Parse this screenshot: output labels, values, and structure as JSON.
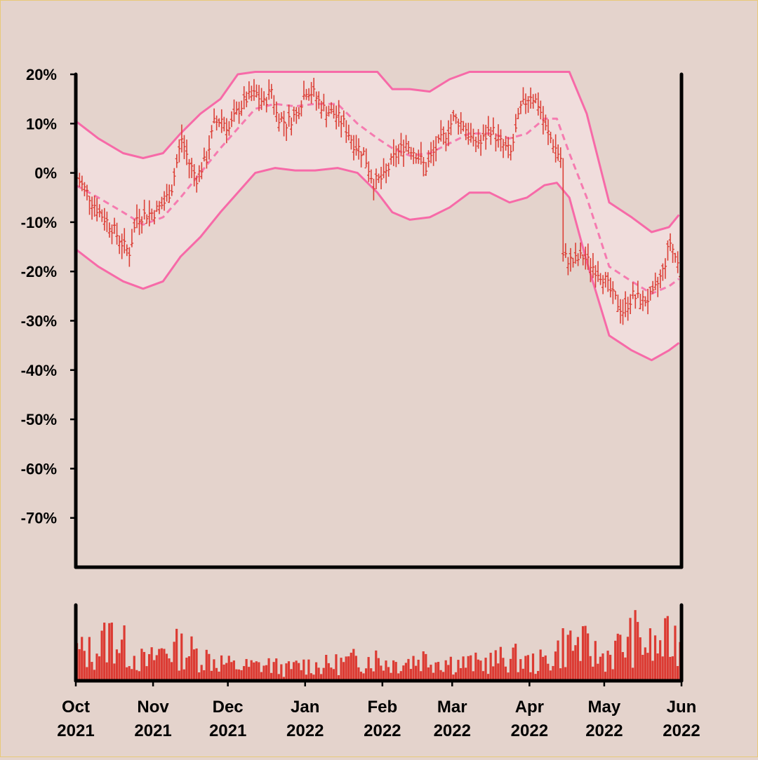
{
  "colors": {
    "background": "#e4d3cc",
    "outer_border": "#e8c979",
    "price_bars": "#dc4037",
    "band": "#f76aa8",
    "band_fill": "#f2dede",
    "volume_bars": "#dc3a32",
    "axis": "#000000"
  },
  "chart_data": {
    "type": "ohlc_bars_with_bollinger_bands_and_volume",
    "title": "",
    "y_axis": {
      "ticks": [
        "20%",
        "10%",
        "0%",
        "-10%",
        "-20%",
        "-30%",
        "-40%",
        "-50%",
        "-60%",
        "-70%"
      ],
      "tick_values": [
        20,
        10,
        0,
        -10,
        -20,
        -30,
        -40,
        -50,
        -60,
        -70
      ],
      "range": [
        -80,
        20
      ],
      "unit": "%"
    },
    "x_axis": {
      "range": [
        "2021-10-01",
        "2022-06-01"
      ],
      "ticks": [
        {
          "date": "2021-10-01",
          "month": "Oct",
          "year": "2021"
        },
        {
          "date": "2021-11-01",
          "month": "Nov",
          "year": "2021"
        },
        {
          "date": "2021-12-01",
          "month": "Dec",
          "year": "2021"
        },
        {
          "date": "2022-01-01",
          "month": "Jan",
          "year": "2022"
        },
        {
          "date": "2022-02-01",
          "month": "Feb",
          "year": "2022"
        },
        {
          "date": "2022-03-01",
          "month": "Mar",
          "year": "2022"
        },
        {
          "date": "2022-04-01",
          "month": "Apr",
          "year": "2022"
        },
        {
          "date": "2022-05-01",
          "month": "May",
          "year": "2022"
        },
        {
          "date": "2022-06-01",
          "month": "Jun",
          "year": "2022"
        }
      ]
    },
    "price_close_pct": [
      {
        "date": "2021-10-01",
        "close": -1
      },
      {
        "date": "2021-10-05",
        "close": -4
      },
      {
        "date": "2021-10-10",
        "close": -8
      },
      {
        "date": "2021-10-15",
        "close": -11
      },
      {
        "date": "2021-10-20",
        "close": -15
      },
      {
        "date": "2021-10-22",
        "close": -16
      },
      {
        "date": "2021-10-25",
        "close": -9
      },
      {
        "date": "2021-11-01",
        "close": -8
      },
      {
        "date": "2021-11-05",
        "close": -6
      },
      {
        "date": "2021-11-08",
        "close": -3
      },
      {
        "date": "2021-11-12",
        "close": 7
      },
      {
        "date": "2021-11-15",
        "close": 2
      },
      {
        "date": "2021-11-18",
        "close": -1
      },
      {
        "date": "2021-11-22",
        "close": 3
      },
      {
        "date": "2021-11-25",
        "close": 10
      },
      {
        "date": "2021-11-28",
        "close": 11
      },
      {
        "date": "2021-12-01",
        "close": 9
      },
      {
        "date": "2021-12-05",
        "close": 13
      },
      {
        "date": "2021-12-08",
        "close": 15
      },
      {
        "date": "2021-12-12",
        "close": 16
      },
      {
        "date": "2021-12-15",
        "close": 14
      },
      {
        "date": "2021-12-18",
        "close": 17
      },
      {
        "date": "2021-12-20",
        "close": 12
      },
      {
        "date": "2021-12-24",
        "close": 10
      },
      {
        "date": "2021-12-28",
        "close": 12
      },
      {
        "date": "2022-01-01",
        "close": 17
      },
      {
        "date": "2022-01-04",
        "close": 16
      },
      {
        "date": "2022-01-08",
        "close": 13
      },
      {
        "date": "2022-01-12",
        "close": 12
      },
      {
        "date": "2022-01-16",
        "close": 10
      },
      {
        "date": "2022-01-20",
        "close": 6
      },
      {
        "date": "2022-01-24",
        "close": 4
      },
      {
        "date": "2022-01-28",
        "close": -2
      },
      {
        "date": "2022-02-01",
        "close": -1
      },
      {
        "date": "2022-02-05",
        "close": 3
      },
      {
        "date": "2022-02-10",
        "close": 6
      },
      {
        "date": "2022-02-14",
        "close": 4
      },
      {
        "date": "2022-02-18",
        "close": 1
      },
      {
        "date": "2022-02-22",
        "close": 5
      },
      {
        "date": "2022-02-26",
        "close": 8
      },
      {
        "date": "2022-03-01",
        "close": 11
      },
      {
        "date": "2022-03-05",
        "close": 10
      },
      {
        "date": "2022-03-08",
        "close": 7
      },
      {
        "date": "2022-03-12",
        "close": 6
      },
      {
        "date": "2022-03-16",
        "close": 9
      },
      {
        "date": "2022-03-20",
        "close": 6
      },
      {
        "date": "2022-03-24",
        "close": 4
      },
      {
        "date": "2022-03-28",
        "close": 13
      },
      {
        "date": "2022-04-01",
        "close": 16
      },
      {
        "date": "2022-04-04",
        "close": 14
      },
      {
        "date": "2022-04-07",
        "close": 9
      },
      {
        "date": "2022-04-10",
        "close": 6
      },
      {
        "date": "2022-04-13",
        "close": 3
      },
      {
        "date": "2022-04-14",
        "close": -17
      },
      {
        "date": "2022-04-18",
        "close": -18
      },
      {
        "date": "2022-04-22",
        "close": -17
      },
      {
        "date": "2022-04-26",
        "close": -19
      },
      {
        "date": "2022-04-30",
        "close": -21
      },
      {
        "date": "2022-05-04",
        "close": -25
      },
      {
        "date": "2022-05-08",
        "close": -28
      },
      {
        "date": "2022-05-12",
        "close": -25
      },
      {
        "date": "2022-05-16",
        "close": -26
      },
      {
        "date": "2022-05-20",
        "close": -25
      },
      {
        "date": "2022-05-24",
        "close": -20
      },
      {
        "date": "2022-05-27",
        "close": -14
      },
      {
        "date": "2022-05-31",
        "close": -20
      }
    ],
    "bollinger_bands": [
      {
        "date": "2021-10-01",
        "upper": 10.5,
        "middle": -2.5,
        "lower": -15.5
      },
      {
        "date": "2021-10-10",
        "upper": 7,
        "middle": -5,
        "lower": -19
      },
      {
        "date": "2021-10-20",
        "upper": 4,
        "middle": -8,
        "lower": -22
      },
      {
        "date": "2021-10-28",
        "upper": 3,
        "middle": -10.5,
        "lower": -23.5
      },
      {
        "date": "2021-11-05",
        "upper": 4,
        "middle": -9,
        "lower": -22
      },
      {
        "date": "2021-11-12",
        "upper": 8,
        "middle": -5,
        "lower": -17
      },
      {
        "date": "2021-11-20",
        "upper": 12,
        "middle": 0,
        "lower": -13
      },
      {
        "date": "2021-11-28",
        "upper": 15,
        "middle": 5,
        "lower": -8
      },
      {
        "date": "2021-12-05",
        "upper": 20,
        "middle": 9,
        "lower": -4
      },
      {
        "date": "2021-12-12",
        "upper": 20.5,
        "middle": 13,
        "lower": 0
      },
      {
        "date": "2021-12-20",
        "upper": 20.5,
        "middle": 14,
        "lower": 1
      },
      {
        "date": "2021-12-28",
        "upper": 20.5,
        "middle": 13.5,
        "lower": 0.5
      },
      {
        "date": "2022-01-05",
        "upper": 20.5,
        "middle": 14,
        "lower": 0.5
      },
      {
        "date": "2022-01-14",
        "upper": 20.5,
        "middle": 14,
        "lower": 1
      },
      {
        "date": "2022-01-22",
        "upper": 20.5,
        "middle": 10,
        "lower": 0
      },
      {
        "date": "2022-01-30",
        "upper": 20.5,
        "middle": 7,
        "lower": -4
      },
      {
        "date": "2022-02-05",
        "upper": 17,
        "middle": 5,
        "lower": -8
      },
      {
        "date": "2022-02-12",
        "upper": 17,
        "middle": 3.5,
        "lower": -9.5
      },
      {
        "date": "2022-02-20",
        "upper": 16.5,
        "middle": 4,
        "lower": -9
      },
      {
        "date": "2022-02-28",
        "upper": 19,
        "middle": 6,
        "lower": -7
      },
      {
        "date": "2022-03-08",
        "upper": 20.5,
        "middle": 8,
        "lower": -4
      },
      {
        "date": "2022-03-16",
        "upper": 20.5,
        "middle": 8,
        "lower": -4
      },
      {
        "date": "2022-03-24",
        "upper": 20.5,
        "middle": 7,
        "lower": -6
      },
      {
        "date": "2022-03-31",
        "upper": 20.5,
        "middle": 8,
        "lower": -5
      },
      {
        "date": "2022-04-07",
        "upper": 20.5,
        "middle": 11,
        "lower": -2.5
      },
      {
        "date": "2022-04-12",
        "upper": 20.5,
        "middle": 11,
        "lower": -2
      },
      {
        "date": "2022-04-17",
        "upper": 20.5,
        "middle": 4,
        "lower": -5
      },
      {
        "date": "2022-04-24",
        "upper": 12,
        "middle": -5,
        "lower": -18
      },
      {
        "date": "2022-05-03",
        "upper": -6,
        "middle": -19,
        "lower": -33
      },
      {
        "date": "2022-05-12",
        "upper": -9,
        "middle": -22,
        "lower": -36
      },
      {
        "date": "2022-05-20",
        "upper": -12,
        "middle": -24.5,
        "lower": -38
      },
      {
        "date": "2022-05-27",
        "upper": -11,
        "middle": -23,
        "lower": -36
      },
      {
        "date": "2022-05-31",
        "upper": -8.5,
        "middle": -21.5,
        "lower": -34.5
      }
    ],
    "volume_relative": [
      {
        "date": "2021-10-01",
        "volume": 0.5
      },
      {
        "date": "2021-10-08",
        "volume": 0.5
      },
      {
        "date": "2021-10-15",
        "volume": 0.8
      },
      {
        "date": "2021-10-22",
        "volume": 0.5
      },
      {
        "date": "2021-10-29",
        "volume": 0.3
      },
      {
        "date": "2021-11-05",
        "volume": 0.55
      },
      {
        "date": "2021-11-12",
        "volume": 0.55
      },
      {
        "date": "2021-11-19",
        "volume": 0.45
      },
      {
        "date": "2021-11-26",
        "volume": 0.35
      },
      {
        "date": "2021-12-03",
        "volume": 0.25
      },
      {
        "date": "2021-12-10",
        "volume": 0.25
      },
      {
        "date": "2021-12-17",
        "volume": 0.28
      },
      {
        "date": "2021-12-24",
        "volume": 0.2
      },
      {
        "date": "2021-12-31",
        "volume": 0.28
      },
      {
        "date": "2022-01-07",
        "volume": 0.26
      },
      {
        "date": "2022-01-14",
        "volume": 0.3
      },
      {
        "date": "2022-01-21",
        "volume": 0.35
      },
      {
        "date": "2022-01-28",
        "volume": 0.4
      },
      {
        "date": "2022-02-04",
        "volume": 0.3
      },
      {
        "date": "2022-02-11",
        "volume": 0.35
      },
      {
        "date": "2022-02-18",
        "volume": 0.4
      },
      {
        "date": "2022-02-25",
        "volume": 0.35
      },
      {
        "date": "2022-03-04",
        "volume": 0.3
      },
      {
        "date": "2022-03-11",
        "volume": 0.3
      },
      {
        "date": "2022-03-18",
        "volume": 0.35
      },
      {
        "date": "2022-03-25",
        "volume": 0.4
      },
      {
        "date": "2022-04-01",
        "volume": 0.3
      },
      {
        "date": "2022-04-08",
        "volume": 0.35
      },
      {
        "date": "2022-04-15",
        "volume": 0.65
      },
      {
        "date": "2022-04-22",
        "volume": 0.6
      },
      {
        "date": "2022-04-29",
        "volume": 0.4
      },
      {
        "date": "2022-05-06",
        "volume": 0.55
      },
      {
        "date": "2022-05-13",
        "volume": 0.75
      },
      {
        "date": "2022-05-20",
        "volume": 0.55
      },
      {
        "date": "2022-05-27",
        "volume": 0.7
      }
    ]
  }
}
